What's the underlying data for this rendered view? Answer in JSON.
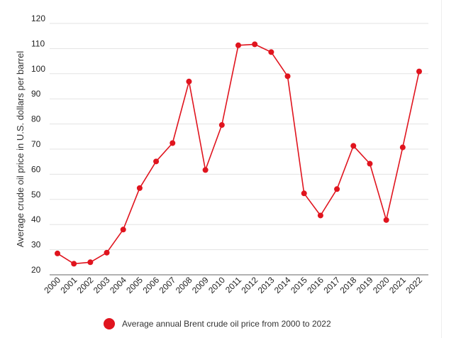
{
  "chart_data": {
    "type": "line",
    "title": "",
    "ylabel": "Average crude oil price in U.S. dollars per barrel",
    "xlabel": "",
    "ylim": [
      20,
      120
    ],
    "yticks": [
      20,
      30,
      40,
      50,
      60,
      70,
      80,
      90,
      100,
      110,
      120
    ],
    "grid": "horizontal",
    "legend_position": "bottom",
    "series": [
      {
        "name": "Average annual Brent crude oil price from 2000 to 2022",
        "color": "#e0141e",
        "x": [
          "2000",
          "2001",
          "2002",
          "2003",
          "2004",
          "2005",
          "2006",
          "2007",
          "2008",
          "2009",
          "2010",
          "2011",
          "2012",
          "2013",
          "2014",
          "2015",
          "2016",
          "2017",
          "2018",
          "2019",
          "2020",
          "2021",
          "2022"
        ],
        "values": [
          28.5,
          24.4,
          25.0,
          28.8,
          38.0,
          54.5,
          65.1,
          72.4,
          96.9,
          61.7,
          79.6,
          111.3,
          111.7,
          108.6,
          99.0,
          52.4,
          43.6,
          54.1,
          71.3,
          64.2,
          41.8,
          70.7,
          100.9
        ]
      }
    ]
  }
}
